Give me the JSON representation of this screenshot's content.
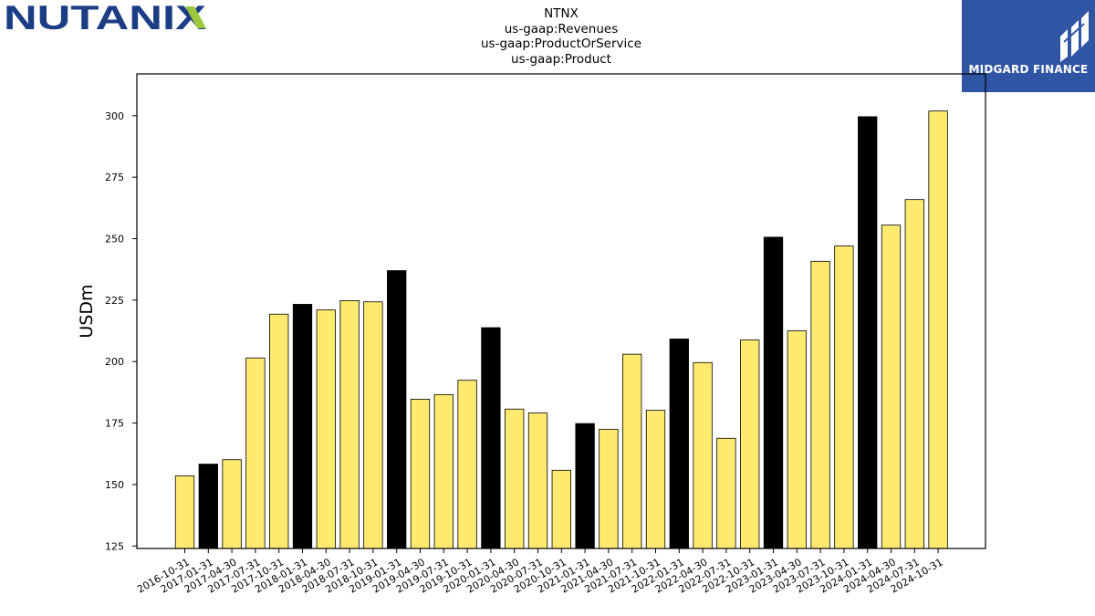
{
  "brand_left": "NUTANIX",
  "brand_right": "MIDGARD FINANCE",
  "colors": {
    "highlight": "#000000",
    "normal": "#ffea70",
    "nutanix_blue": "#1b3d84",
    "nutanix_green": "#9cc83b",
    "midgard_bg": "#2f55a4"
  },
  "chart_data": {
    "type": "bar",
    "title_lines": [
      "NTNX",
      "us-gaap:Revenues",
      "us-gaap:ProductOrService",
      "us-gaap:Product"
    ],
    "xlabel": "",
    "ylabel": "USDm",
    "ylim": [
      124,
      317
    ],
    "yticks": [
      125,
      150,
      175,
      200,
      225,
      250,
      275,
      300
    ],
    "categories": [
      "2016-10-31",
      "2017-01-31",
      "2017-04-30",
      "2017-07-31",
      "2017-10-31",
      "2018-01-31",
      "2018-04-30",
      "2018-07-31",
      "2018-10-31",
      "2019-01-31",
      "2019-04-30",
      "2019-07-31",
      "2019-10-31",
      "2020-01-31",
      "2020-04-30",
      "2020-07-31",
      "2020-10-31",
      "2021-01-31",
      "2021-04-30",
      "2021-07-31",
      "2021-10-31",
      "2022-01-31",
      "2022-04-30",
      "2022-07-31",
      "2022-10-31",
      "2023-01-31",
      "2023-04-30",
      "2023-07-31",
      "2023-10-31",
      "2024-01-31",
      "2024-04-30",
      "2024-07-31",
      "2024-10-31"
    ],
    "values": [
      153.5,
      158.3,
      160.1,
      201.5,
      219.3,
      223.3,
      221.0,
      224.8,
      224.3,
      237.0,
      184.7,
      186.6,
      192.4,
      213.8,
      180.7,
      179.1,
      155.8,
      174.8,
      172.5,
      203.0,
      180.2,
      209.2,
      199.6,
      168.8,
      208.8,
      250.6,
      212.5,
      240.8,
      247.0,
      299.6,
      255.5,
      265.9,
      301.9
    ],
    "highlight": [
      false,
      true,
      false,
      false,
      false,
      true,
      false,
      false,
      false,
      true,
      false,
      false,
      false,
      true,
      false,
      false,
      false,
      true,
      false,
      false,
      false,
      true,
      false,
      false,
      false,
      true,
      false,
      false,
      false,
      true,
      false,
      false,
      false
    ]
  }
}
